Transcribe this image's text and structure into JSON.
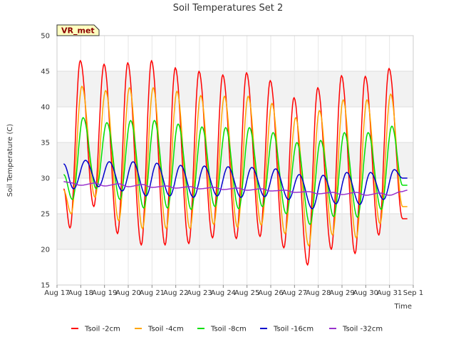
{
  "chart_data": {
    "type": "line",
    "title": "Soil Temperatures Set 2",
    "xlabel": "Time",
    "ylabel": "Soil Temperature (C)",
    "ylim": [
      15,
      50
    ],
    "yticks": [
      15,
      20,
      25,
      30,
      35,
      40,
      45,
      50
    ],
    "xlim": [
      17,
      32
    ],
    "xticks": [
      "Aug 17",
      "Aug 18",
      "Aug 19",
      "Aug 20",
      "Aug 21",
      "Aug 22",
      "Aug 23",
      "Aug 24",
      "Aug 25",
      "Aug 26",
      "Aug 27",
      "Aug 28",
      "Aug 29",
      "Aug 30",
      "Aug 31",
      "Sep 1"
    ],
    "station_label": "VR_met",
    "grid": true,
    "legend_position": "bottom",
    "series": [
      {
        "name": "Tsoil -2cm",
        "color": "#ff0000",
        "x": [
          17.28,
          17.55,
          17.98,
          18.55,
          18.98,
          19.55,
          19.98,
          20.55,
          20.98,
          21.55,
          21.98,
          22.55,
          22.98,
          23.55,
          23.98,
          24.55,
          24.98,
          25.55,
          25.98,
          26.55,
          26.98,
          27.55,
          27.98,
          28.55,
          28.98,
          29.55,
          29.98,
          30.55,
          30.98,
          31.55,
          31.75
        ],
        "y": [
          28.5,
          23.0,
          46.5,
          26.0,
          46.0,
          22.2,
          46.2,
          20.6,
          46.5,
          20.6,
          45.5,
          20.8,
          45.0,
          21.6,
          44.5,
          21.5,
          44.8,
          21.8,
          43.7,
          20.2,
          41.3,
          17.8,
          42.7,
          20.0,
          44.4,
          19.4,
          44.3,
          22.0,
          45.4,
          24.3,
          24.3
        ]
      },
      {
        "name": "Tsoil -4cm",
        "color": "#ffa500",
        "x": [
          17.28,
          17.6,
          18.05,
          18.6,
          19.05,
          19.6,
          20.05,
          20.6,
          21.05,
          21.6,
          22.05,
          22.6,
          23.05,
          23.6,
          24.05,
          24.6,
          25.05,
          25.6,
          26.05,
          26.6,
          27.05,
          27.6,
          28.05,
          28.6,
          29.05,
          29.6,
          30.05,
          30.6,
          31.05,
          31.55,
          31.75
        ],
        "y": [
          28.3,
          25.0,
          42.9,
          27.3,
          42.3,
          24.0,
          42.7,
          22.9,
          42.7,
          22.9,
          42.2,
          22.9,
          41.6,
          23.5,
          41.5,
          23.1,
          41.5,
          23.4,
          40.5,
          22.2,
          38.5,
          20.5,
          39.5,
          22.0,
          41.0,
          21.6,
          41.0,
          23.6,
          41.8,
          26.0,
          26.0
        ]
      },
      {
        "name": "Tsoil -8cm",
        "color": "#00e000",
        "x": [
          17.28,
          17.65,
          18.1,
          18.65,
          19.1,
          19.65,
          20.1,
          20.65,
          21.1,
          21.65,
          22.1,
          22.65,
          23.1,
          23.65,
          24.1,
          24.65,
          25.1,
          25.65,
          26.1,
          26.65,
          27.1,
          27.65,
          28.1,
          28.65,
          29.1,
          29.65,
          30.1,
          30.65,
          31.1,
          31.55,
          31.75
        ],
        "y": [
          30.5,
          27.0,
          38.5,
          28.5,
          37.8,
          27.0,
          38.1,
          25.8,
          38.1,
          25.8,
          37.6,
          25.6,
          37.2,
          26.0,
          37.1,
          25.7,
          37.1,
          26.0,
          36.4,
          25.0,
          35.0,
          23.5,
          35.3,
          24.6,
          36.4,
          24.5,
          36.4,
          25.6,
          37.3,
          29.0,
          29.0
        ]
      },
      {
        "name": "Tsoil -16cm",
        "color": "#0000cc",
        "x": [
          17.28,
          17.7,
          18.2,
          18.75,
          19.2,
          19.75,
          20.2,
          20.75,
          21.2,
          21.75,
          22.2,
          22.75,
          23.2,
          23.75,
          24.2,
          24.75,
          25.2,
          25.75,
          26.2,
          26.75,
          27.2,
          27.75,
          28.2,
          28.75,
          29.2,
          29.75,
          30.2,
          30.75,
          31.2,
          31.55,
          31.75
        ],
        "y": [
          32.0,
          28.5,
          32.5,
          28.8,
          32.3,
          28.2,
          32.3,
          27.5,
          32.1,
          27.5,
          31.8,
          27.3,
          31.7,
          27.5,
          31.6,
          27.3,
          31.5,
          27.4,
          31.3,
          27.0,
          30.5,
          25.7,
          30.4,
          26.4,
          30.8,
          26.3,
          30.8,
          27.0,
          31.2,
          30.0,
          30.0
        ]
      },
      {
        "name": "Tsoil -32cm",
        "color": "#9932cc",
        "x": [
          17.28,
          17.5,
          18.0,
          18.6,
          19.0,
          19.6,
          20.0,
          20.6,
          21.0,
          21.6,
          22.0,
          22.6,
          23.0,
          23.6,
          24.0,
          24.6,
          25.0,
          25.6,
          26.0,
          26.6,
          27.0,
          27.6,
          28.0,
          28.6,
          29.0,
          29.6,
          30.0,
          30.6,
          31.0,
          31.5,
          31.75
        ],
        "y": [
          29.5,
          29.4,
          29.0,
          29.3,
          28.9,
          29.2,
          28.8,
          29.1,
          28.7,
          28.9,
          28.6,
          28.8,
          28.5,
          28.7,
          28.4,
          28.6,
          28.3,
          28.5,
          28.2,
          28.3,
          28.0,
          28.1,
          27.8,
          28.0,
          27.7,
          28.0,
          27.6,
          27.9,
          27.6,
          28.1,
          28.3
        ]
      }
    ]
  }
}
